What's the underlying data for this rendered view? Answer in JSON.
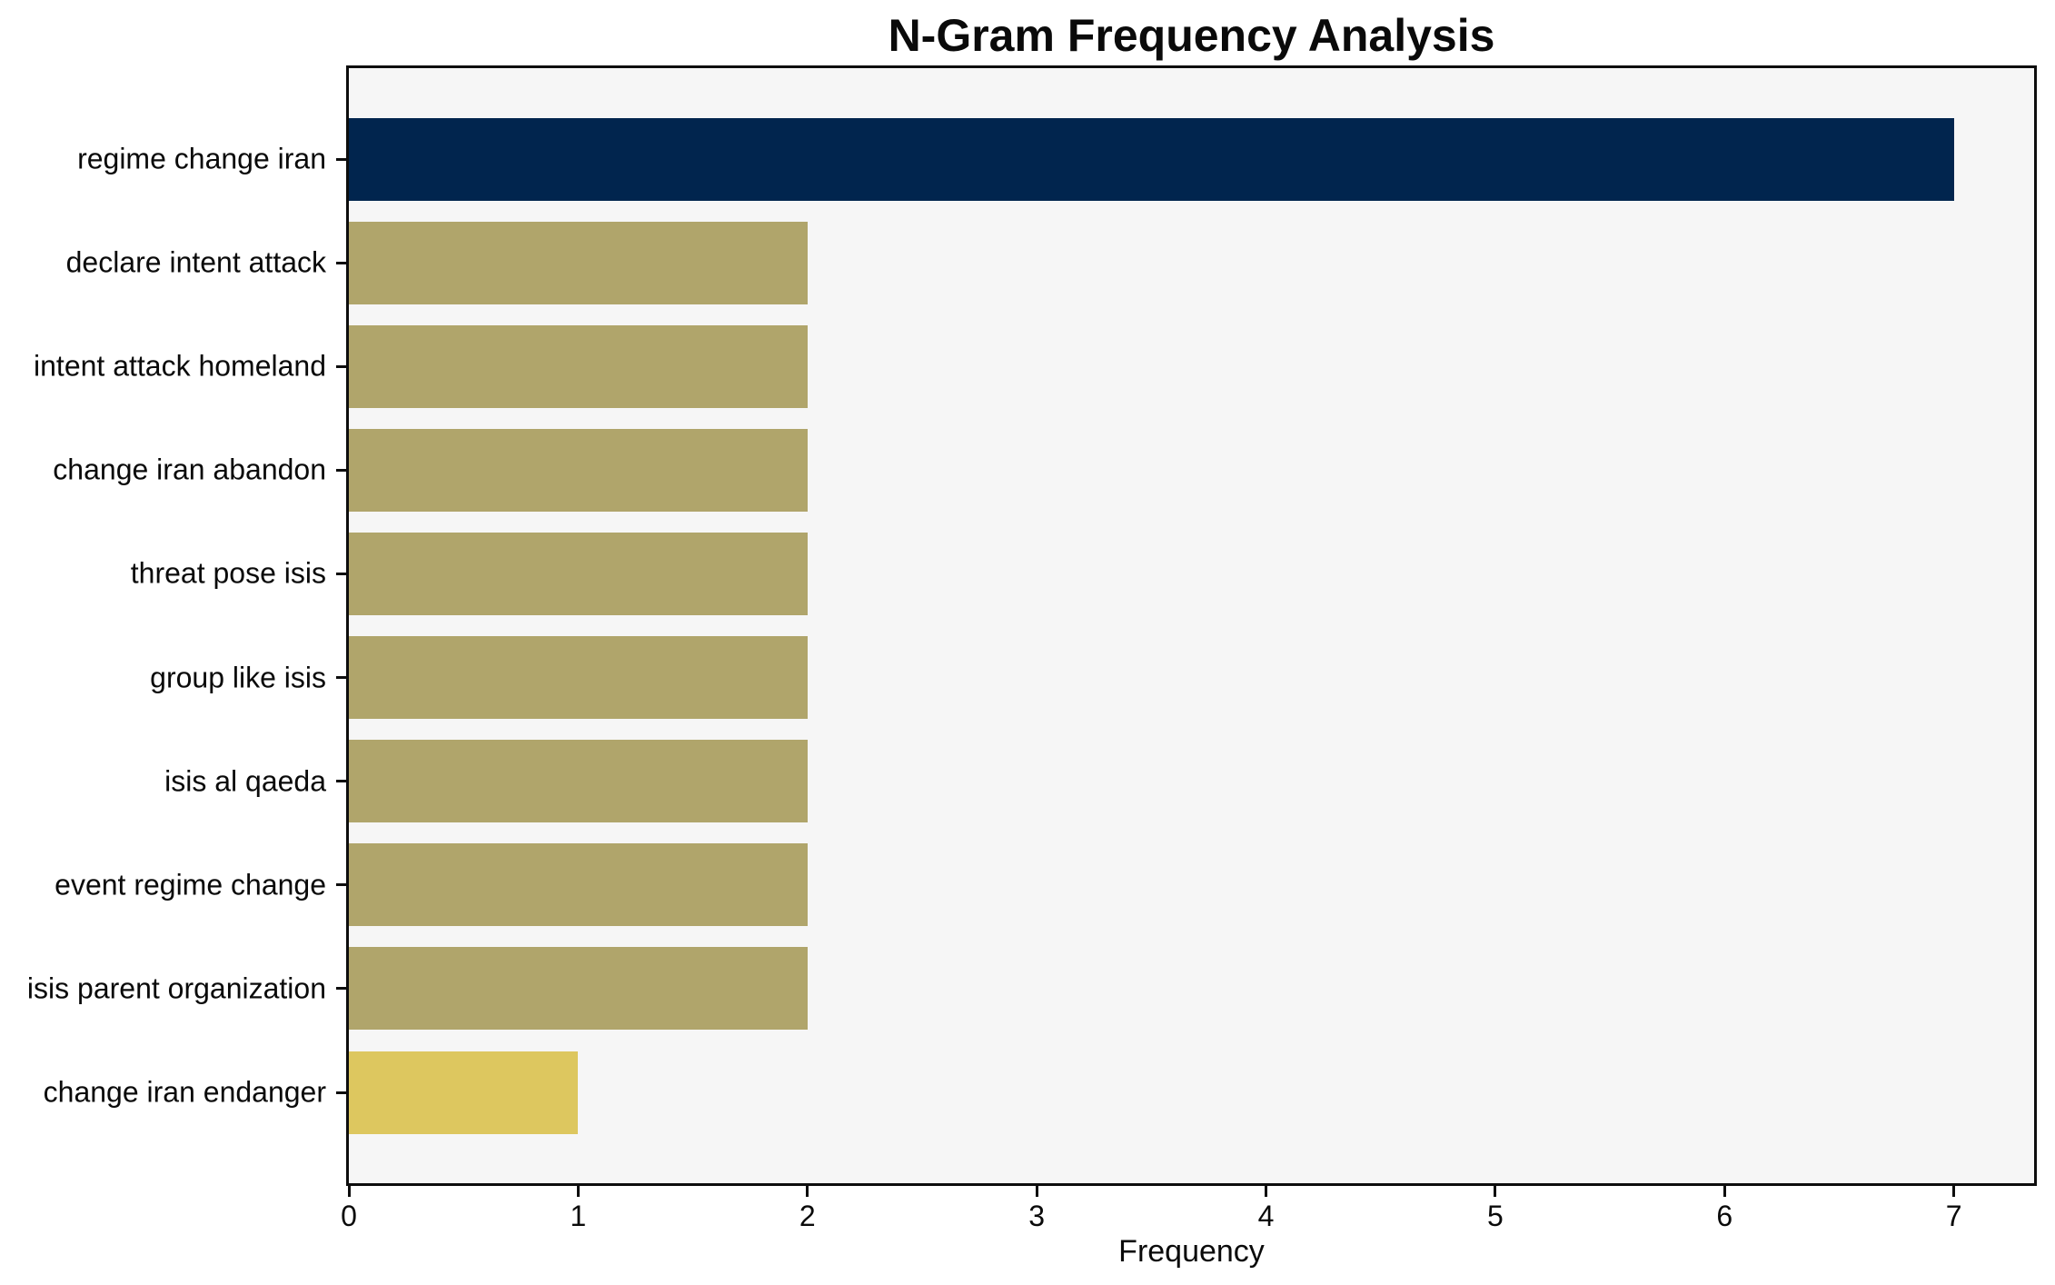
{
  "chart_data": {
    "type": "bar",
    "orientation": "horizontal",
    "title": "N-Gram Frequency Analysis",
    "xlabel": "Frequency",
    "ylabel": "",
    "categories": [
      "regime change iran",
      "declare intent attack",
      "intent attack homeland",
      "change iran abandon",
      "threat pose isis",
      "group like isis",
      "isis al qaeda",
      "event regime change",
      "isis parent organization",
      "change iran endanger"
    ],
    "values": [
      7,
      2,
      2,
      2,
      2,
      2,
      2,
      2,
      2,
      1
    ],
    "bar_colors": [
      "#01254e",
      "#b0a56b",
      "#b0a56b",
      "#b0a56b",
      "#b0a56b",
      "#b0a56b",
      "#b0a56b",
      "#b0a56b",
      "#b0a56b",
      "#ddc75f"
    ],
    "xlim": [
      0,
      7.35
    ],
    "xticks": [
      0,
      1,
      2,
      3,
      4,
      5,
      6,
      7
    ],
    "grid": false,
    "legend": null,
    "plot_background": "#f6f6f6",
    "figure_background": "#ffffff",
    "frame_color": "#0d0d0d"
  }
}
